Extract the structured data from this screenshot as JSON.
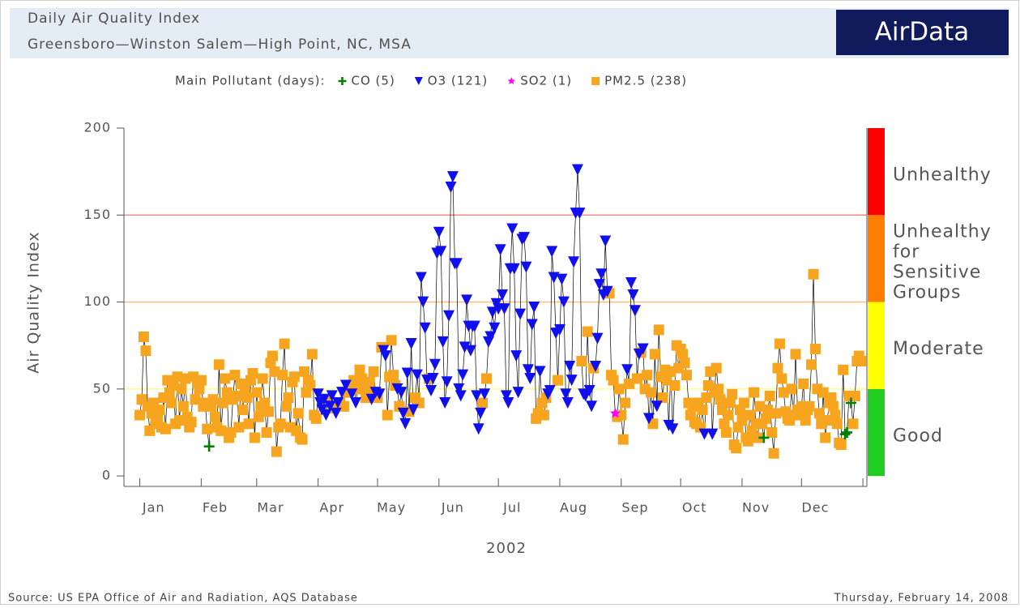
{
  "header": {
    "title": "Daily Air Quality Index",
    "subtitle": "Greensboro—Winston Salem—High Point, NC, MSA",
    "logo": "AirData"
  },
  "footer": {
    "source": "Source: US EPA  Office of Air and Radiation, AQS Database",
    "date": "Thursday, February 14, 2008"
  },
  "chart_data": {
    "type": "scatter",
    "legend_title": "Main Pollutant (days):",
    "y_label": "Air Quality Index",
    "x_label": "2002",
    "xlim": [
      -7,
      368
    ],
    "ylim": [
      -6,
      200
    ],
    "yticks": [
      0,
      50,
      100,
      150,
      200
    ],
    "xticks": [
      {
        "value": 8,
        "label": "Jan"
      },
      {
        "value": 39,
        "label": "Feb"
      },
      {
        "value": 67,
        "label": "Mar"
      },
      {
        "value": 98,
        "label": "Apr"
      },
      {
        "value": 128,
        "label": "May"
      },
      {
        "value": 159,
        "label": "Jun"
      },
      {
        "value": 189,
        "label": "Jul"
      },
      {
        "value": 220,
        "label": "Aug"
      },
      {
        "value": 251,
        "label": "Sep"
      },
      {
        "value": 281,
        "label": "Oct"
      },
      {
        "value": 312,
        "label": "Nov"
      },
      {
        "value": 342,
        "label": "Dec"
      }
    ],
    "xtick_marks": [
      1,
      32,
      60,
      91,
      121,
      152,
      182,
      213,
      244,
      274,
      305,
      335,
      366
    ],
    "connect_line": true,
    "line_color": "#000000",
    "bands": [
      {
        "from": 0,
        "to": 50,
        "color": "#1fcc1f",
        "label_lines": [
          "Good"
        ]
      },
      {
        "from": 50,
        "to": 100,
        "color": "#ffff00",
        "label_lines": [
          "Moderate"
        ]
      },
      {
        "from": 100,
        "to": 150,
        "color": "#ff7e00",
        "label_lines": [
          "Unhealthy",
          "for",
          "Sensitive",
          "Groups"
        ]
      },
      {
        "from": 150,
        "to": 200,
        "color": "#ff0000",
        "label_lines": [
          "Unhealthy"
        ]
      }
    ],
    "series": [
      {
        "name": "CO (5)",
        "color": "#008000",
        "marker": "plus",
        "x": [
          36,
          316,
          357,
          358,
          360
        ],
        "values": [
          17,
          22,
          24,
          25,
          42
        ]
      },
      {
        "name": "O3 (121)",
        "color": "#1010ee",
        "marker": "triangle-down",
        "x": [
          91,
          92,
          93,
          94,
          95,
          97,
          98,
          100,
          101,
          103,
          105,
          108,
          110,
          118,
          120,
          122,
          124,
          125,
          131,
          133,
          134,
          135,
          136,
          138,
          139,
          141,
          143,
          144,
          145,
          146,
          148,
          149,
          150,
          151,
          152,
          153,
          154,
          155,
          156,
          157,
          158,
          159,
          160,
          161,
          162,
          163,
          164,
          165,
          166,
          167,
          168,
          169,
          170,
          171,
          172,
          173,
          175,
          177,
          178,
          179,
          180,
          181,
          182,
          183,
          184,
          185,
          186,
          187,
          188,
          189,
          190,
          191,
          192,
          193,
          194,
          195,
          196,
          197,
          198,
          199,
          200,
          203,
          207,
          208,
          209,
          210,
          211,
          213,
          214,
          215,
          216,
          217,
          218,
          219,
          220,
          221,
          222,
          223,
          225,
          226,
          228,
          229,
          231,
          232,
          233,
          234,
          235,
          236,
          237,
          247,
          249,
          250,
          251,
          253,
          255,
          258,
          262,
          268,
          270,
          286,
          290
        ],
        "values": [
          47,
          42,
          38,
          44,
          35,
          40,
          46,
          36,
          42,
          48,
          52,
          47,
          42,
          44,
          48,
          47,
          72,
          69,
          50,
          48,
          36,
          30,
          59,
          76,
          38,
          58,
          114,
          100,
          85,
          55,
          49,
          56,
          64,
          128,
          140,
          129,
          77,
          42,
          54,
          92,
          166,
          172,
          122,
          122,
          50,
          46,
          58,
          74,
          101,
          86,
          72,
          86,
          86,
          46,
          27,
          36,
          47,
          77,
          80,
          94,
          85,
          99,
          96,
          130,
          104,
          96,
          46,
          42,
          119,
          142,
          119,
          69,
          48,
          93,
          136,
          137,
          120,
          61,
          56,
          87,
          97,
          60,
          47,
          49,
          129,
          114,
          82,
          84,
          113,
          100,
          47,
          42,
          63,
          55,
          123,
          151,
          176,
          151,
          47,
          46,
          49,
          40,
          63,
          79,
          110,
          116,
          104,
          135,
          106,
          61,
          111,
          104,
          95,
          70,
          73,
          33,
          40,
          29,
          27,
          24,
          24
        ]
      },
      {
        "name": "SO2 (1)",
        "color": "#ff00ff",
        "marker": "star",
        "x": [
          241
        ],
        "values": [
          36
        ]
      },
      {
        "name": "PM2.5 (238)",
        "color": "#f7a51e",
        "marker": "square",
        "x": [
          1,
          2,
          3,
          4,
          5,
          6,
          7,
          8,
          9,
          10,
          11,
          12,
          13,
          14,
          15,
          16,
          17,
          18,
          19,
          20,
          21,
          22,
          23,
          24,
          25,
          26,
          27,
          28,
          29,
          30,
          31,
          32,
          33,
          34,
          35,
          37,
          38,
          39,
          40,
          41,
          42,
          43,
          44,
          45,
          46,
          47,
          48,
          49,
          50,
          51,
          52,
          53,
          54,
          55,
          56,
          57,
          58,
          59,
          60,
          61,
          62,
          63,
          64,
          65,
          66,
          67,
          68,
          69,
          70,
          71,
          72,
          73,
          74,
          75,
          76,
          77,
          78,
          79,
          80,
          81,
          82,
          83,
          84,
          85,
          86,
          87,
          88,
          89,
          90,
          96,
          99,
          102,
          104,
          106,
          107,
          109,
          111,
          112,
          113,
          114,
          115,
          116,
          117,
          119,
          121,
          123,
          126,
          127,
          128,
          129,
          130,
          132,
          137,
          140,
          142,
          147,
          174,
          176,
          201,
          202,
          204,
          205,
          206,
          212,
          224,
          227,
          230,
          238,
          239,
          240,
          242,
          243,
          244,
          245,
          246,
          248,
          252,
          254,
          256,
          257,
          259,
          260,
          261,
          263,
          264,
          265,
          266,
          267,
          269,
          271,
          272,
          273,
          274,
          275,
          276,
          277,
          278,
          279,
          280,
          281,
          282,
          283,
          284,
          285,
          287,
          288,
          289,
          291,
          292,
          293,
          294,
          295,
          296,
          297,
          298,
          299,
          300,
          301,
          302,
          303,
          304,
          305,
          306,
          307,
          308,
          309,
          310,
          311,
          312,
          313,
          314,
          315,
          317,
          318,
          319,
          320,
          321,
          322,
          323,
          324,
          325,
          326,
          327,
          328,
          329,
          330,
          331,
          332,
          333,
          334,
          335,
          336,
          337,
          338,
          339,
          340,
          341,
          342,
          343,
          344,
          345,
          346,
          347,
          348,
          349,
          350,
          351,
          352,
          353,
          354,
          355,
          356,
          359,
          361,
          362,
          363,
          364,
          365
        ],
        "values": [
          35,
          44,
          80,
          72,
          40,
          26,
          36,
          42,
          30,
          33,
          38,
          28,
          45,
          27,
          55,
          48,
          42,
          52,
          30,
          57,
          32,
          50,
          40,
          56,
          34,
          28,
          31,
          57,
          44,
          54,
          50,
          55,
          40,
          42,
          27,
          40,
          44,
          34,
          28,
          64,
          26,
          42,
          56,
          48,
          22,
          25,
          44,
          58,
          46,
          28,
          53,
          38,
          50,
          45,
          30,
          55,
          59,
          22,
          48,
          34,
          40,
          56,
          42,
          25,
          37,
          65,
          69,
          60,
          14,
          28,
          30,
          58,
          76,
          40,
          45,
          28,
          54,
          57,
          26,
          36,
          22,
          21,
          60,
          48,
          55,
          52,
          70,
          35,
          33,
          44,
          39,
          42,
          40,
          48,
          52,
          55,
          50,
          61,
          56,
          52,
          45,
          50,
          54,
          60,
          45,
          74,
          35,
          57,
          78,
          58,
          52,
          40,
          37,
          45,
          42,
          56,
          42,
          56,
          33,
          36,
          42,
          35,
          45,
          55,
          66,
          83,
          62,
          105,
          58,
          55,
          34,
          50,
          35,
          21,
          42,
          53,
          56,
          71,
          50,
          58,
          48,
          30,
          70,
          84,
          57,
          45,
          61,
          55,
          60,
          52,
          75,
          62,
          73,
          70,
          65,
          58,
          42,
          35,
          40,
          31,
          30,
          42,
          28,
          38,
          45,
          52,
          60,
          48,
          62,
          50,
          44,
          38,
          30,
          25,
          35,
          42,
          47,
          18,
          16,
          28,
          38,
          32,
          42,
          22,
          20,
          35,
          26,
          48,
          30,
          22,
          40,
          30,
          33,
          38,
          46,
          25,
          13,
          36,
          62,
          76,
          56,
          48,
          37,
          33,
          32,
          50,
          35,
          70,
          38,
          35,
          40,
          53,
          32,
          38,
          40,
          64,
          116,
          73,
          50,
          36,
          30,
          48,
          22,
          32,
          42,
          45,
          40,
          35,
          30,
          19,
          18,
          61,
          46,
          30,
          46,
          66,
          69,
          66
        ]
      }
    ]
  }
}
